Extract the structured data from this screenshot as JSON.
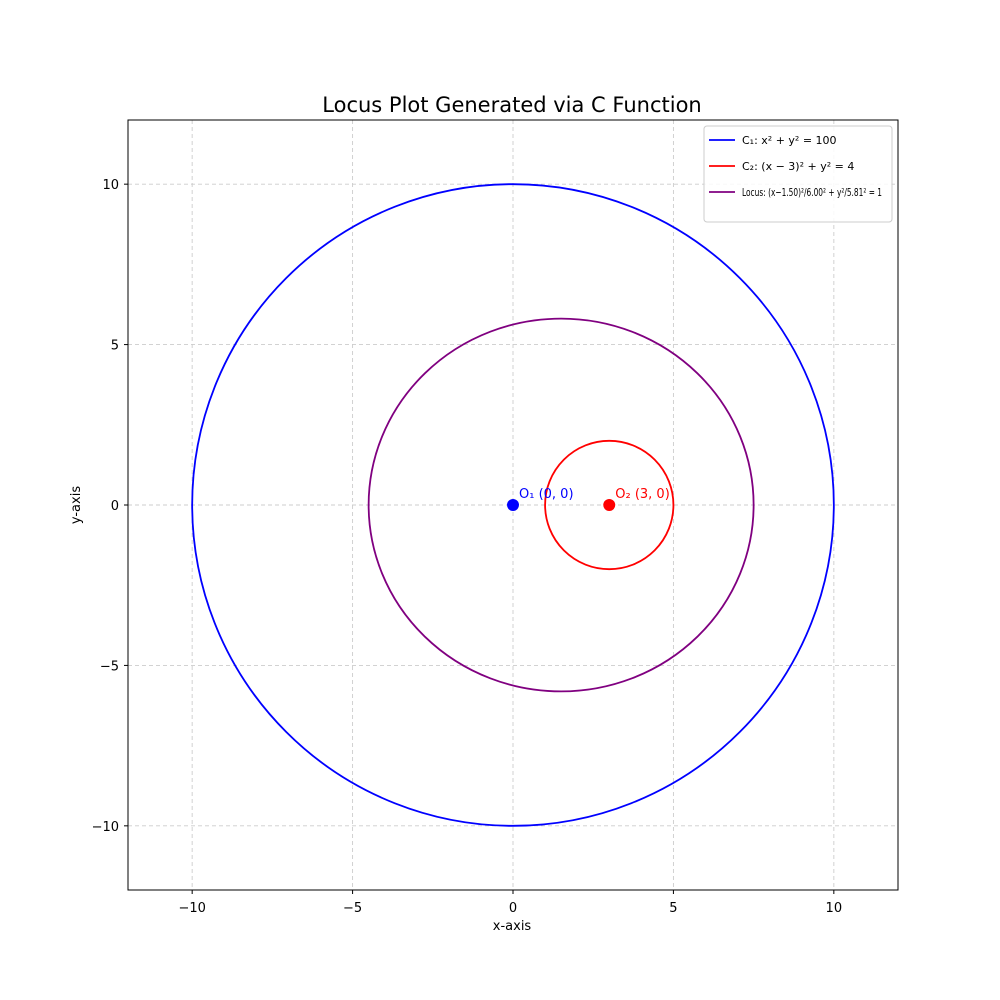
{
  "chart_data": {
    "type": "line",
    "title": "Locus Plot Generated via C Function",
    "xlabel": "x-axis",
    "ylabel": "y-axis",
    "xlim": [
      -12,
      12
    ],
    "ylim": [
      -12,
      12
    ],
    "grid": true,
    "legend_position": "top-right",
    "x_ticks": [
      -10,
      -5,
      0,
      5,
      10
    ],
    "y_ticks": [
      -10,
      -5,
      0,
      5,
      10
    ],
    "x_tick_labels": [
      "−10",
      "−5",
      "0",
      "5",
      "10"
    ],
    "y_tick_labels": [
      "−10",
      "−5",
      "0",
      "5",
      "10"
    ],
    "series": [
      {
        "name": "C₁: x² + y² = 100",
        "kind": "circle",
        "center": [
          0,
          0
        ],
        "rx": 10,
        "ry": 10,
        "color": "#0000ff"
      },
      {
        "name": "C₂: (x − 3)² + y² = 4",
        "kind": "circle",
        "center": [
          3,
          0
        ],
        "rx": 2,
        "ry": 2,
        "color": "#ff0000"
      },
      {
        "name": "Locus: (x−1.50)²/6.00² + y²/5.81² = 1",
        "kind": "ellipse",
        "center": [
          1.5,
          0
        ],
        "rx": 6.0,
        "ry": 5.81,
        "color": "#800080"
      }
    ],
    "points": [
      {
        "label": "O₁ (0, 0)",
        "x": 0,
        "y": 0,
        "color": "#0000ff"
      },
      {
        "label": "O₂ (3, 0)",
        "x": 3,
        "y": 0,
        "color": "#ff0000"
      }
    ]
  }
}
